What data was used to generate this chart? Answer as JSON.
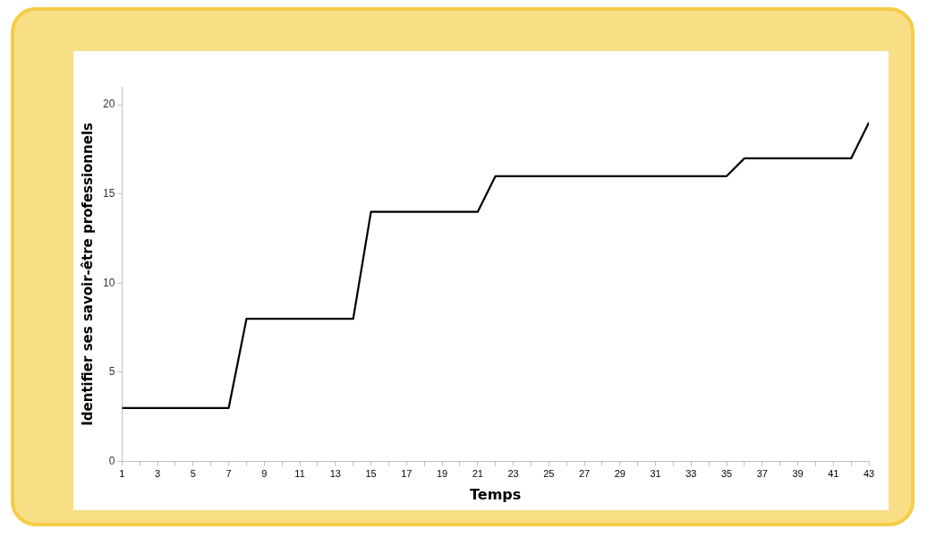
{
  "chart_data": {
    "type": "line",
    "xlabel": "Temps",
    "ylabel": "Identifier ses savoir-être professionnels",
    "x": [
      1,
      2,
      3,
      4,
      5,
      6,
      7,
      8,
      9,
      10,
      11,
      12,
      13,
      14,
      15,
      16,
      17,
      18,
      19,
      20,
      21,
      22,
      23,
      24,
      25,
      26,
      27,
      28,
      29,
      30,
      31,
      32,
      33,
      34,
      35,
      36,
      37,
      38,
      39,
      40,
      41,
      42,
      43
    ],
    "series": [
      {
        "color": "#000000",
        "values": [
          3,
          3,
          3,
          3,
          3,
          3,
          3,
          8,
          8,
          8,
          8,
          8,
          8,
          8,
          14,
          14,
          14,
          14,
          14,
          14,
          14,
          16,
          16,
          16,
          16,
          16,
          16,
          16,
          16,
          16,
          16,
          16,
          16,
          16,
          16,
          17,
          17,
          17,
          17,
          17,
          17,
          17,
          19
        ]
      }
    ],
    "xlim": [
      1,
      43
    ],
    "xticks": [
      1,
      {
        "value": 2,
        "label": null
      },
      3,
      {
        "value": 4,
        "label": null
      },
      5,
      {
        "value": 6,
        "label": null
      },
      7,
      {
        "value": 8,
        "label": null
      },
      9,
      {
        "value": 10,
        "label": null
      },
      11,
      {
        "value": 12,
        "label": null
      },
      13,
      {
        "value": 14,
        "label": null
      },
      15,
      {
        "value": 16,
        "label": null
      },
      17,
      {
        "value": 18,
        "label": null
      },
      19,
      {
        "value": 20,
        "label": null
      },
      21,
      {
        "value": 22,
        "label": null
      },
      23,
      {
        "value": 24,
        "label": null
      },
      25,
      {
        "value": 26,
        "label": null
      },
      27,
      {
        "value": 28,
        "label": null
      },
      29,
      {
        "value": 30,
        "label": null
      },
      31,
      {
        "value": 32,
        "label": null
      },
      33,
      {
        "value": 34,
        "label": null
      },
      35,
      {
        "value": 36,
        "label": null
      },
      37,
      {
        "value": 38,
        "label": null
      },
      39,
      {
        "value": 40,
        "label": null
      },
      41,
      {
        "value": 42,
        "label": null
      },
      43
    ],
    "ylim": [
      0,
      21
    ],
    "yticks": [
      0,
      5,
      10,
      15,
      20
    ],
    "grid": false,
    "legend": false,
    "marker": "none",
    "line_style": "solid"
  }
}
